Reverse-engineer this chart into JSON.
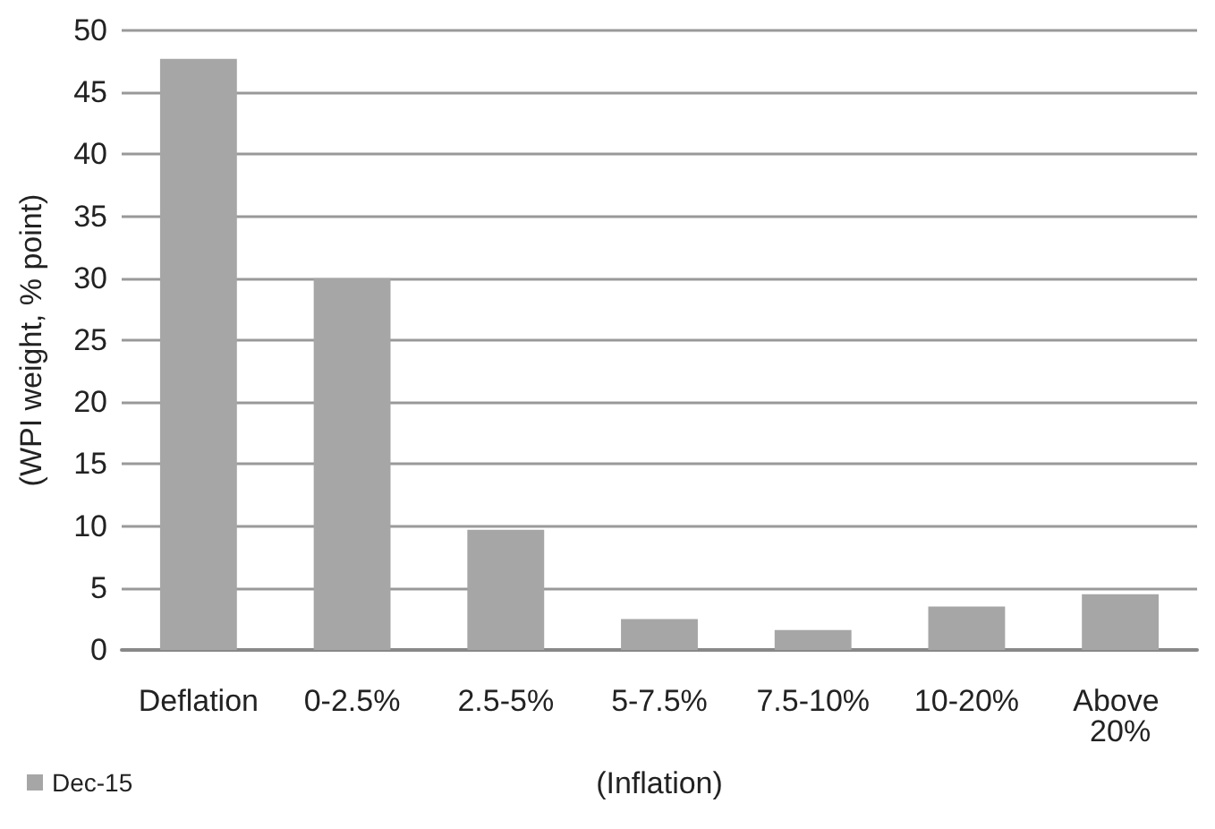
{
  "chart_data": {
    "type": "bar",
    "xlabel": "(Inflation)",
    "ylabel": "(WPI weight, % point)",
    "categories": [
      "Deflation",
      "0-2.5%",
      "2.5-5%",
      "5-7.5%",
      "7.5-10%",
      "10-20%",
      "Above 20%"
    ],
    "series": [
      {
        "name": "Dec-15",
        "color": "#a6a6a6",
        "values": [
          47.7,
          30.0,
          9.7,
          2.5,
          1.6,
          3.5,
          4.5
        ]
      }
    ],
    "ylim": [
      0,
      50
    ],
    "yticks": [
      0,
      5,
      10,
      15,
      20,
      25,
      30,
      35,
      40,
      45,
      50
    ],
    "grid": "y",
    "legend": "bottom left"
  }
}
